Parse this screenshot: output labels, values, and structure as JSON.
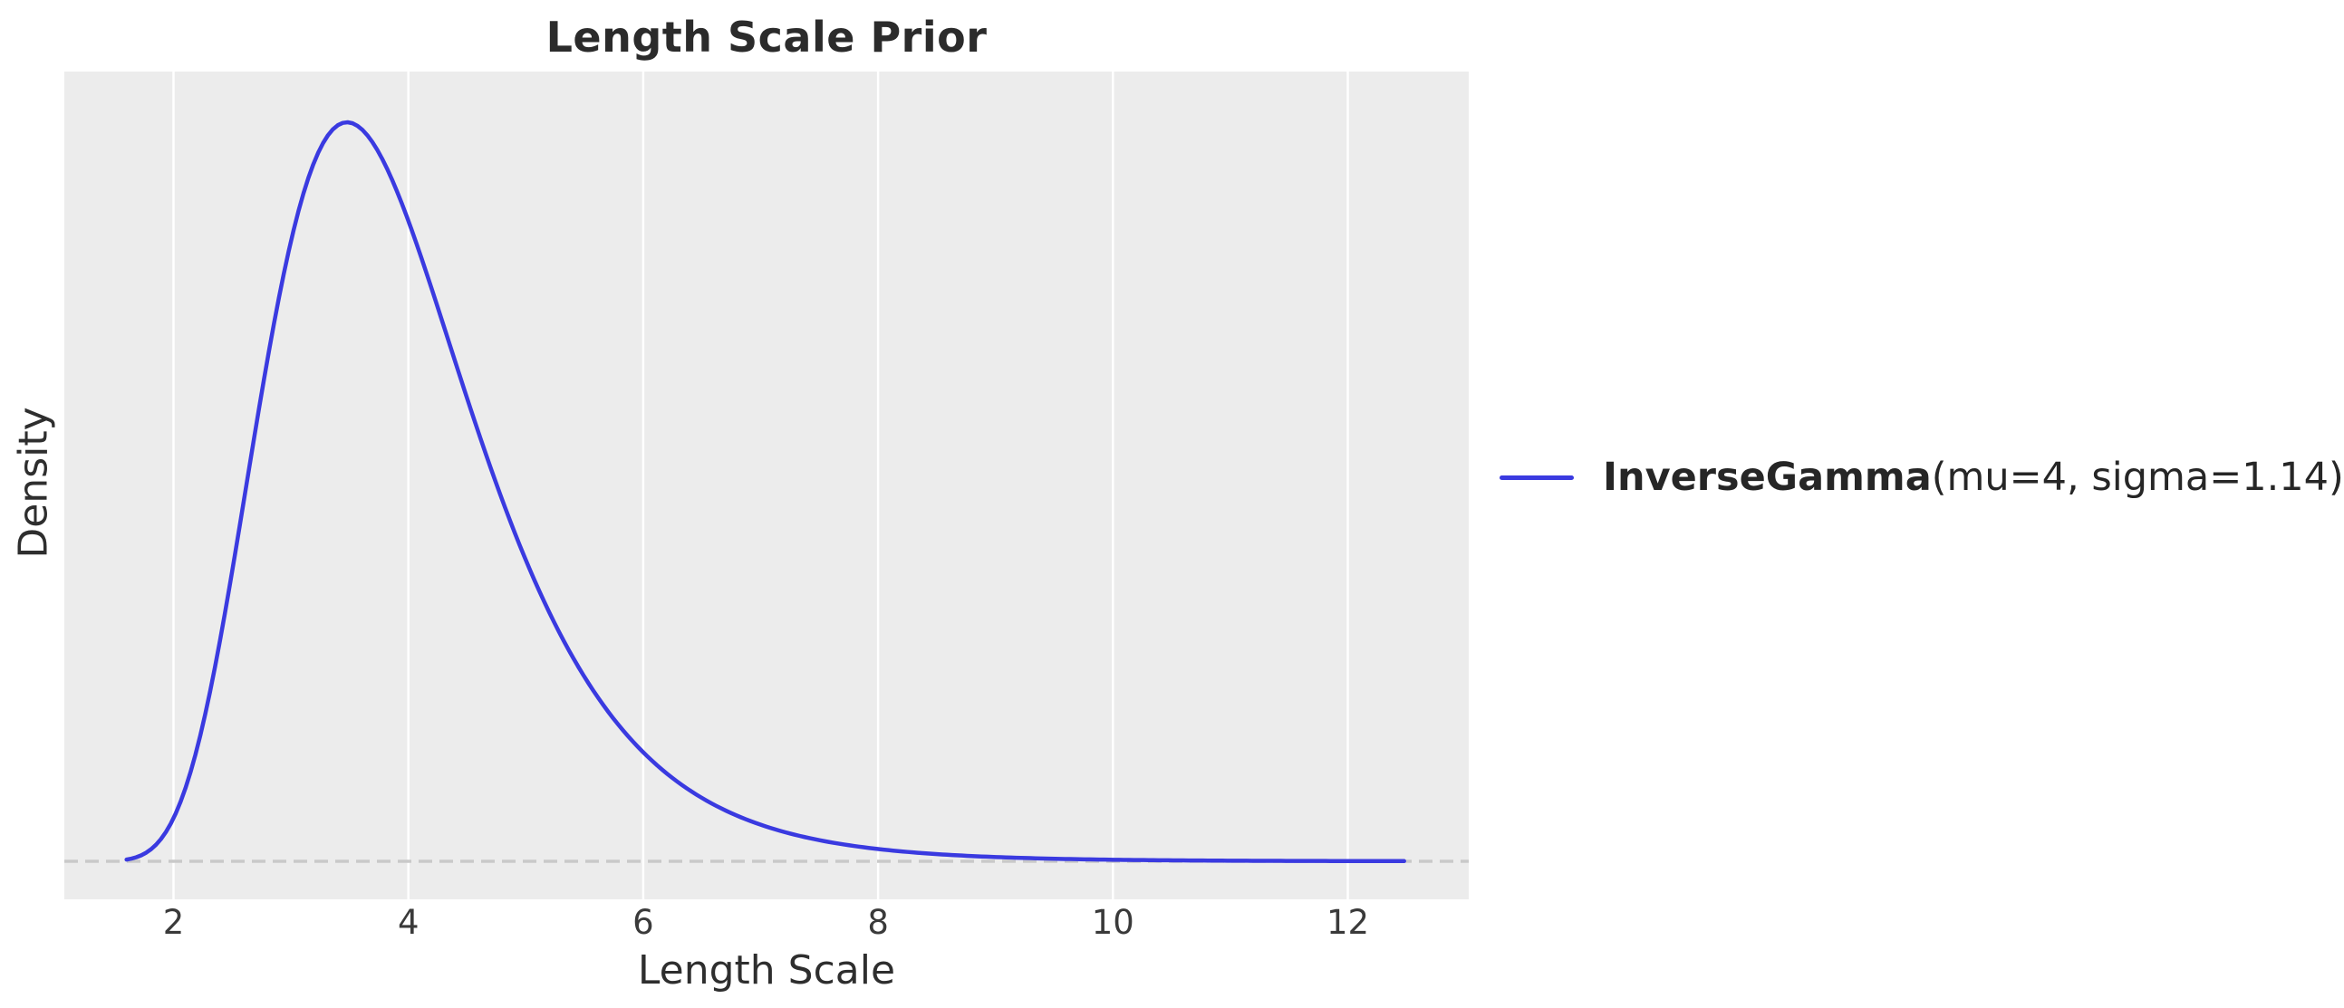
{
  "title": "Length Scale Prior",
  "axes": {
    "xlabel": "Length Scale",
    "ylabel": "Density",
    "x_ticks": [
      "2",
      "4",
      "6",
      "8",
      "10",
      "12"
    ]
  },
  "legend": {
    "label_bold": "InverseGamma",
    "label_rest": "(mu=4, sigma=1.14)"
  },
  "chart_data": {
    "type": "line",
    "title": "Length Scale Prior",
    "xlabel": "Length Scale",
    "ylabel": "Density",
    "grid": "vertical-only",
    "legend_position": "center-right-outside",
    "x_ticks": [
      2,
      4,
      6,
      8,
      10,
      12
    ],
    "xlim": [
      1.07,
      13.03
    ],
    "ylim_fraction_of_peak": [
      -0.0515,
      1.0686
    ],
    "baseline": {
      "value": 0,
      "style": "dashed"
    },
    "series": [
      {
        "name": "InverseGamma(mu=4, sigma=1.14)",
        "distribution": "inverse_gamma",
        "mu": 4,
        "sigma": 1.14,
        "mode_x": 3.48,
        "x_start": 1.6,
        "x_end": 12.48
      }
    ]
  },
  "colors": {
    "curve": "#3a3ae0",
    "plot_bg": "#ececec",
    "gridline": "#ffffff",
    "baseline": "#c9c9c9",
    "title_text": "#2b2b2b",
    "label_text": "#2e2e2e",
    "tick_text": "#3a3a3a",
    "legend_text": "#262626"
  }
}
